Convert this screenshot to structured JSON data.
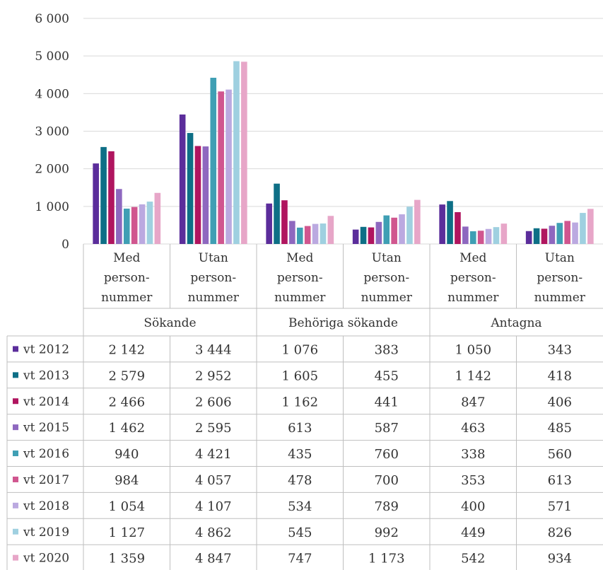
{
  "chart_data": {
    "type": "bar",
    "categories": [
      "Med person-nummer",
      "Utan person-nummer",
      "Med person-nummer",
      "Utan person-nummer",
      "Med person-nummer",
      "Utan person-nummer"
    ],
    "category_lines": [
      [
        "Med",
        "person-",
        "nummer"
      ],
      [
        "Utan",
        "person-",
        "nummer"
      ],
      [
        "Med",
        "person-",
        "nummer"
      ],
      [
        "Utan",
        "person-",
        "nummer"
      ],
      [
        "Med",
        "person-",
        "nummer"
      ],
      [
        "Utan",
        "person-",
        "nummer"
      ]
    ],
    "groups": [
      "Sökande",
      "Behöriga sökande",
      "Antagna"
    ],
    "series": [
      {
        "name": "vt 2012",
        "color": "#5b2d9b",
        "values": [
          2142,
          3444,
          1076,
          383,
          1050,
          343
        ],
        "labels": [
          "2 142",
          "3 444",
          "1 076",
          "383",
          "1 050",
          "343"
        ]
      },
      {
        "name": "vt 2013",
        "color": "#0e6f86",
        "values": [
          2579,
          2952,
          1605,
          455,
          1142,
          418
        ],
        "labels": [
          "2 579",
          "2 952",
          "1 605",
          "455",
          "1 142",
          "418"
        ]
      },
      {
        "name": "vt 2014",
        "color": "#b0155f",
        "values": [
          2466,
          2606,
          1162,
          441,
          847,
          406
        ],
        "labels": [
          "2 466",
          "2 606",
          "1 162",
          "441",
          "847",
          "406"
        ]
      },
      {
        "name": "vt 2015",
        "color": "#8e68bf",
        "values": [
          1462,
          2595,
          613,
          587,
          463,
          485
        ],
        "labels": [
          "1 462",
          "2 595",
          "613",
          "587",
          "463",
          "485"
        ]
      },
      {
        "name": "vt 2016",
        "color": "#3f9fb4",
        "values": [
          940,
          4421,
          435,
          760,
          338,
          560
        ],
        "labels": [
          "940",
          "4 421",
          "435",
          "760",
          "338",
          "560"
        ]
      },
      {
        "name": "vt 2017",
        "color": "#d0568f",
        "values": [
          984,
          4057,
          478,
          700,
          353,
          613
        ],
        "labels": [
          "984",
          "4 057",
          "478",
          "700",
          "353",
          "613"
        ]
      },
      {
        "name": "vt 2018",
        "color": "#bba9e0",
        "values": [
          1054,
          4107,
          534,
          789,
          400,
          571
        ],
        "labels": [
          "1 054",
          "4 107",
          "534",
          "789",
          "400",
          "571"
        ]
      },
      {
        "name": "vt 2019",
        "color": "#9fd0e0",
        "values": [
          1127,
          4862,
          545,
          992,
          449,
          826
        ],
        "labels": [
          "1 127",
          "4 862",
          "545",
          "992",
          "449",
          "826"
        ]
      },
      {
        "name": "vt 2020",
        "color": "#e7a6c8",
        "values": [
          1359,
          4847,
          747,
          1173,
          542,
          934
        ],
        "labels": [
          "1 359",
          "4 847",
          "747",
          "1 173",
          "542",
          "934"
        ]
      }
    ],
    "ylim": [
      0,
      6000
    ],
    "yticks": [
      0,
      1000,
      2000,
      3000,
      4000,
      5000,
      6000
    ],
    "ytick_labels": [
      "0",
      "1 000",
      "2 000",
      "3 000",
      "4 000",
      "5 000",
      "6 000"
    ],
    "grid": true,
    "legend": "data-table"
  }
}
